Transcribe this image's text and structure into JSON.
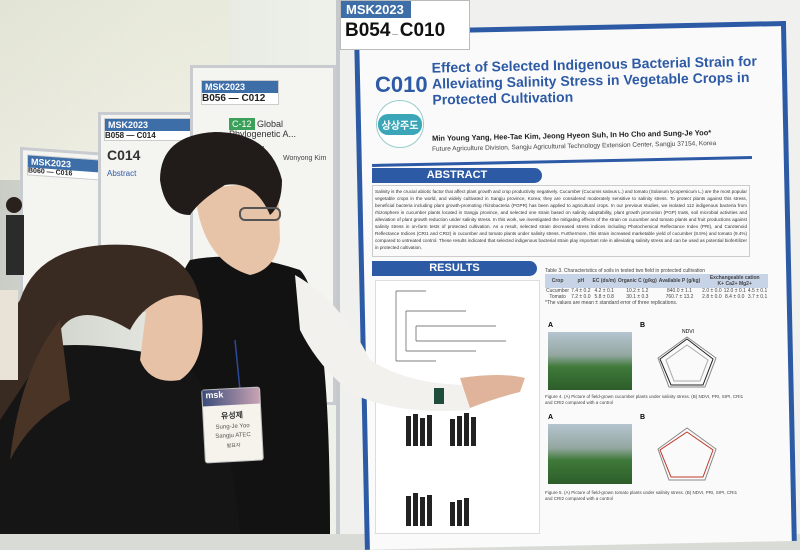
{
  "background_posters": [
    {
      "msk": "MSK2023",
      "codes": "B056 — C012",
      "badge": "C-12",
      "title": "Global Phylogenetic A... Syntha...",
      "author": "Wonyong Kim"
    },
    {
      "msk": "MSK2023",
      "codes": "B058 — C014",
      "code": "C014",
      "section": "Abstract"
    },
    {
      "msk": "MSK2023",
      "codes": "B060 — C016"
    }
  ],
  "poster": {
    "msk": "MSK2023",
    "board": "B054",
    "code": "C010",
    "title": "Effect of Selected Indigenous Bacterial Strain for Alleviating Salinity Stress in Vegetable Crops in Protected Cultivation",
    "logo_text": "상상주도",
    "authors": "Min Young Yang, Hee-Tae Kim, Jeong Hyeon Suh, In Ho Cho and Sung-Je Yoo*",
    "affiliation": "Future Agriculture Division, Sangju Agricultural Technology Extension Center, Sangju 37154, Korea",
    "abstract_heading": "ABSTRACT",
    "abstract": "Salinity is the crucial abiotic factor that affect plant growth and crop productivity negatively. Cucumber (Cucumis sativus L.) and tomato (Solanum lycopersicum L.) are the most popular vegetable crops in the world, and widely cultivated in Sangju province, Korea; they are considered moderately sensitive to salinity stress. To protect plants against this stress, beneficial bacteria including plant growth-promoting rhizobacteria (PGPR) has been applied to agricultural crops. In our previous studies, we isolated 112 indigenous bacteria from rhizosphere in cucumber plants located in Sangju province, and selected one strain based on salinity adaptability, plant growth promotion (PGP) traits, soil microbial activities and alleviation of plant growth reduction under salinity stress. In this work, we investigated the mitigating effects of the strain on cucumber and tomato plants and fruit productions against salinity stress in on-farm tests of protected cultivation. As a result, selected strain decreased stress indices including Photochemical Reflectance Index (PRI), and Carotenoid Reflectance Indices (CRI1 and CRI2) in cucumber and tomato plants under salinity stress. Furthermore, this strain increased marketable yield of cucumber (8.5%) and tomato (9.4%) compared to untreated control. These results indicated that selected indigenous bacterial strain play important role in alleviating salinity stress and can be used as potential biofertilizer in protected cultivation.",
    "results_heading": "RESULTS",
    "table": {
      "caption": "Table 3. Characteristics of soils in tested two field in protected cultivation",
      "headers": [
        "Crop",
        "pH",
        "EC (ds/m)",
        "Organic C (g/kg)",
        "Available P (g/kg)",
        "K+",
        "Ca2+",
        "Mg2+"
      ],
      "group_header": "Exchangeable cation",
      "rows": [
        [
          "Cucumber",
          "7.4 ± 0.2",
          "4.2 ± 0.1",
          "10.2 ± 1.2",
          "840.0 ± 1.1",
          "2.0 ± 0.0",
          "12.0 ± 0.1",
          "4.5 ± 0.1"
        ],
        [
          "Tomato",
          "7.2 ± 0.0",
          "5.8 ± 0.8",
          "30.1 ± 0.3",
          "760.7 ± 13.2",
          "2.8 ± 0.0",
          "8.4 ± 0.0",
          "3.7 ± 0.1"
        ]
      ],
      "note": "*The values are mean ± standard error of three replications."
    },
    "figure_labels": [
      "A",
      "B",
      "A",
      "B"
    ],
    "radar_label": "NDVI",
    "fig_caption_1": "Figure 4. (A) Picture of field-grown cucumber plants under salinity stress. (B) NDVI, PRI, SIPI, CRI1 and CRI2 compared with a control",
    "fig_caption_2": "Figure 5. (A) Picture of field-grown tomato plants under salinity stress. (B) NDVI, PRI, SIPI, CRI1 and CRI2 compared with a control"
  },
  "name_badge": {
    "brand": "msk",
    "name_kr": "유성제",
    "name_en": "Sung-Je Yoo",
    "org": "Sangju ATEC",
    "role": "발표자"
  },
  "colors": {
    "poster_blue": "#2d5aa5",
    "logo_teal": "#3aa6b8",
    "msk_blue": "#3d6ea8"
  }
}
